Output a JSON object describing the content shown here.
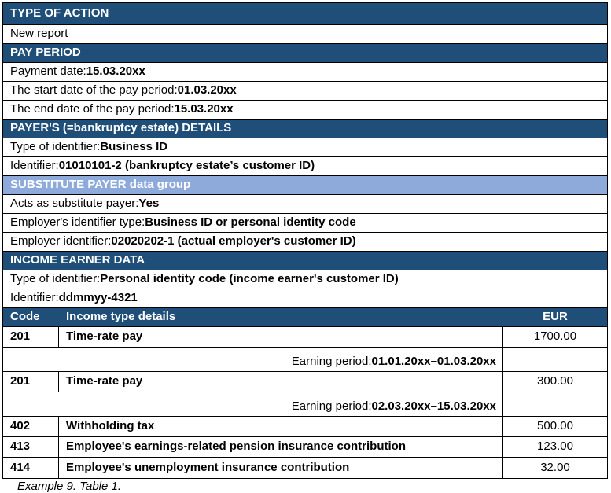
{
  "colors": {
    "section_header_bg": "#1F4E79",
    "subsection_header_bg": "#8EAADB",
    "header_text": "#FFFFFF",
    "body_text": "#000000",
    "border": "#000000"
  },
  "sections": {
    "type_of_action": {
      "header": "TYPE OF ACTION",
      "value": "New report"
    },
    "pay_period": {
      "header": "PAY PERIOD",
      "payment_date": {
        "label": "Payment date: ",
        "value": "15.03.20xx"
      },
      "start_date": {
        "label": "The start date of the pay period: ",
        "value": "01.03.20xx"
      },
      "end_date": {
        "label": "The end date of the pay period: ",
        "value": "15.03.20xx"
      }
    },
    "payer_details": {
      "header": "PAYER'S (=bankruptcy estate) DETAILS",
      "identifier_type": {
        "label": "Type of identifier: ",
        "value": "Business ID"
      },
      "identifier": {
        "label": "Identifier:",
        "value": "01010101-2 (bankruptcy estate’s customer ID)"
      }
    },
    "substitute_payer": {
      "header": "SUBSTITUTE PAYER data group",
      "acts_as_substitute": {
        "label": "Acts as substitute payer: ",
        "value": "Yes"
      },
      "employer_identifier_type": {
        "label": "Employer's identifier type: ",
        "value": "Business ID or personal identity code"
      },
      "employer_identifier": {
        "label": "Employer identifier: ",
        "value": "02020202-1 (actual employer's customer ID)"
      }
    },
    "income_earner": {
      "header": "INCOME EARNER DATA",
      "identifier_type": {
        "label": "Type of identifier: ",
        "value": "Personal identity code (income earner's customer ID)"
      },
      "identifier": {
        "label": "Identifier: ",
        "value": "ddmmyy-4321"
      }
    }
  },
  "income_table": {
    "columns": {
      "code": "Code",
      "details": "Income type details",
      "amount": "EUR"
    },
    "rows": [
      {
        "code": "201",
        "details": "Time-rate pay",
        "amount": "1700.00"
      },
      {
        "label": "Earning period: ",
        "value": "01.01.20xx–01.03.20xx"
      },
      {
        "code": "201",
        "details": "Time-rate pay",
        "amount": "300.00"
      },
      {
        "label": "Earning period: ",
        "value": "02.03.20xx–15.03.20xx"
      },
      {
        "code": "402",
        "details": "Withholding tax",
        "amount": "500.00"
      },
      {
        "code": "413",
        "details": "Employee's earnings-related pension insurance contribution",
        "amount": "123.00"
      },
      {
        "code": "414",
        "details": "Employee's unemployment insurance contribution",
        "amount": "32.00"
      }
    ]
  },
  "caption": "Example 9. Table 1."
}
